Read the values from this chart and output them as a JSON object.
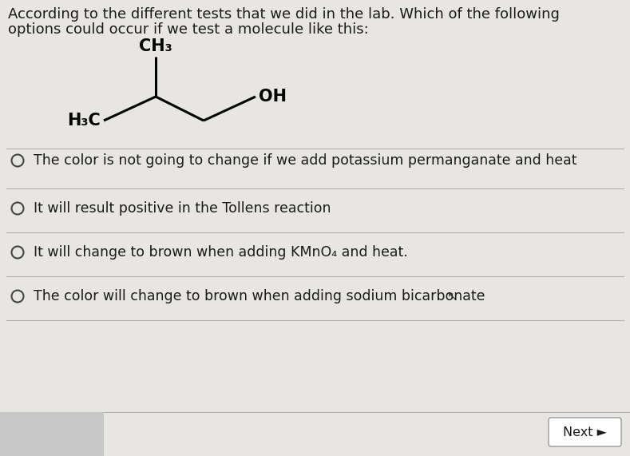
{
  "background_color": "#e8e6e3",
  "title_line1": "According to the different tests that we did in the lab. Which of the following",
  "title_line2": "options could occur if we test a molecule like this:",
  "options": [
    "The color is not going to change if we add potassium permanganate and heat",
    "It will result positive in the Tollens reaction",
    "It will change to brown when adding KMnO₄ and heat.",
    "The color will change to brown when adding sodium bicarbonate"
  ],
  "next_button_text": "Next ►",
  "text_color": "#1a1a1a",
  "line_color": "#b0b0b0",
  "circle_color": "#444444",
  "font_size_title": 13.0,
  "font_size_options": 12.5,
  "font_size_next": 11.5,
  "mol_lw": 2.2,
  "mol_label_fs": 15,
  "mol_bold": "normal"
}
